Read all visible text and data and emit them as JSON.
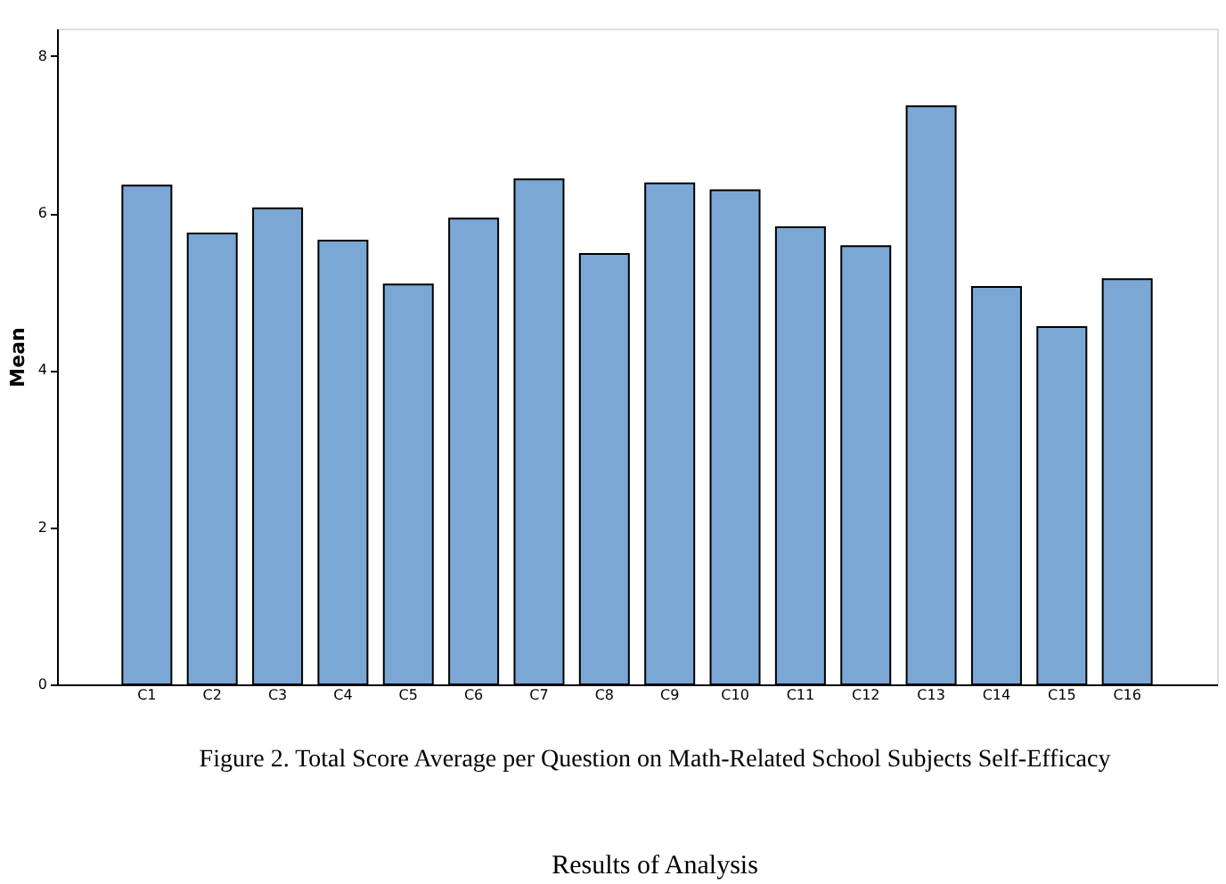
{
  "chart_data": {
    "type": "bar",
    "categories": [
      "C1",
      "C2",
      "C3",
      "C4",
      "C5",
      "C6",
      "C7",
      "C8",
      "C9",
      "C10",
      "C11",
      "C12",
      "C13",
      "C14",
      "C15",
      "C16"
    ],
    "values": [
      6.35,
      5.74,
      6.06,
      5.65,
      5.09,
      5.93,
      6.43,
      5.48,
      6.38,
      6.29,
      5.82,
      5.58,
      7.36,
      5.06,
      4.55,
      5.16
    ],
    "color": "#7ba7d4",
    "ylabel": "Mean",
    "ylim": [
      0,
      8.35
    ],
    "yticks": [
      0,
      2,
      4,
      6,
      8
    ],
    "grid": false,
    "annotations": [
      "Figure 2. Total Score Average per Question on Math-Related School Subjects Self-Efficacy",
      "Results of Analysis"
    ]
  }
}
